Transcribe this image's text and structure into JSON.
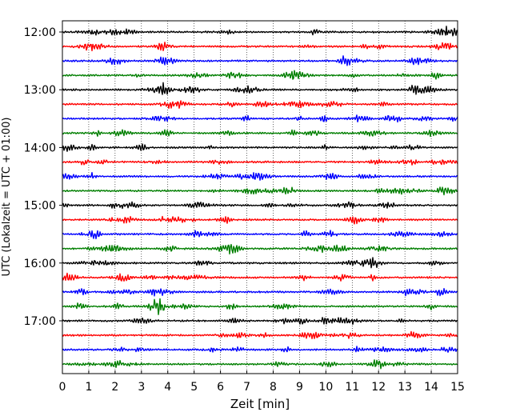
{
  "chart_data": {
    "type": "line",
    "title": "",
    "xlabel": "Zeit  [min]",
    "ylabel": "UTC (Lokalzeit = UTC + 01:00)",
    "xlim": [
      0,
      15
    ],
    "x_ticks": [
      "0",
      "1",
      "2",
      "3",
      "4",
      "5",
      "6",
      "7",
      "8",
      "9",
      "10",
      "11",
      "12",
      "13",
      "14",
      "15"
    ],
    "y_ticks": [
      "12:00",
      "13:00",
      "14:00",
      "15:00",
      "16:00",
      "17:00"
    ],
    "vertical_grid": true,
    "grid_style": "dotted",
    "trace_interval_minutes": 15,
    "traces": [
      {
        "start": "12:00",
        "color": "#000000"
      },
      {
        "start": "12:15",
        "color": "#ff0000"
      },
      {
        "start": "12:30",
        "color": "#0000ff"
      },
      {
        "start": "12:45",
        "color": "#007f00"
      },
      {
        "start": "13:00",
        "color": "#000000"
      },
      {
        "start": "13:15",
        "color": "#ff0000"
      },
      {
        "start": "13:30",
        "color": "#0000ff"
      },
      {
        "start": "13:45",
        "color": "#007f00"
      },
      {
        "start": "14:00",
        "color": "#000000"
      },
      {
        "start": "14:15",
        "color": "#ff0000"
      },
      {
        "start": "14:30",
        "color": "#0000ff"
      },
      {
        "start": "14:45",
        "color": "#007f00"
      },
      {
        "start": "15:00",
        "color": "#000000"
      },
      {
        "start": "15:15",
        "color": "#ff0000"
      },
      {
        "start": "15:30",
        "color": "#0000ff"
      },
      {
        "start": "15:45",
        "color": "#007f00"
      },
      {
        "start": "16:00",
        "color": "#000000"
      },
      {
        "start": "16:15",
        "color": "#ff0000"
      },
      {
        "start": "16:30",
        "color": "#0000ff"
      },
      {
        "start": "16:45",
        "color": "#007f00"
      },
      {
        "start": "17:00",
        "color": "#000000"
      },
      {
        "start": "17:15",
        "color": "#ff0000"
      },
      {
        "start": "17:30",
        "color": "#0000ff"
      },
      {
        "start": "17:45",
        "color": "#007f00"
      }
    ]
  }
}
